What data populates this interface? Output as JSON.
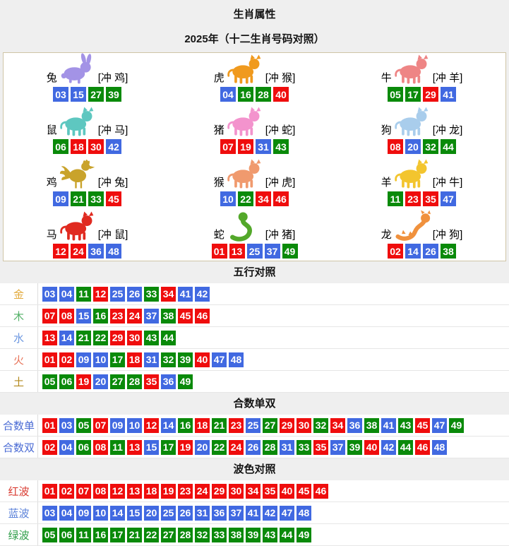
{
  "page": {
    "title": "生肖属性",
    "subtitle": "2025年（十二生肖号码对照）"
  },
  "palette": {
    "ball_red": "#ef0d0d",
    "ball_blue": "#4169e1",
    "ball_green": "#0a8a0a"
  },
  "ball_color_groups": {
    "red": [
      1,
      2,
      7,
      8,
      12,
      13,
      18,
      19,
      23,
      24,
      29,
      30,
      34,
      35,
      40,
      45,
      46
    ],
    "blue": [
      3,
      4,
      9,
      10,
      14,
      15,
      20,
      25,
      26,
      31,
      36,
      37,
      41,
      42,
      47,
      48
    ],
    "green": [
      5,
      6,
      11,
      16,
      17,
      21,
      22,
      27,
      28,
      32,
      33,
      38,
      39,
      43,
      44,
      49
    ]
  },
  "zodiac_cells": [
    {
      "name": "兔",
      "clash": "[冲 鸡]",
      "icon": "rabbit-icon",
      "icon_color": "#a393e6",
      "numbers": [
        "03",
        "15",
        "27",
        "39"
      ]
    },
    {
      "name": "虎",
      "clash": "[冲 猴]",
      "icon": "tiger-icon",
      "icon_color": "#f09a1e",
      "numbers": [
        "04",
        "16",
        "28",
        "40"
      ]
    },
    {
      "name": "牛",
      "clash": "[冲 羊]",
      "icon": "ox-icon",
      "icon_color": "#ee8585",
      "numbers": [
        "05",
        "17",
        "29",
        "41"
      ]
    },
    {
      "name": "鼠",
      "clash": "[冲 马]",
      "icon": "rat-icon",
      "icon_color": "#5ec7c0",
      "numbers": [
        "06",
        "18",
        "30",
        "42"
      ]
    },
    {
      "name": "猪",
      "clash": "[冲 蛇]",
      "icon": "pig-icon",
      "icon_color": "#f393cd",
      "numbers": [
        "07",
        "19",
        "31",
        "43"
      ]
    },
    {
      "name": "狗",
      "clash": "[冲 龙]",
      "icon": "dog-icon",
      "icon_color": "#a9cdec",
      "numbers": [
        "08",
        "20",
        "32",
        "44"
      ]
    },
    {
      "name": "鸡",
      "clash": "[冲 兔]",
      "icon": "rooster-icon",
      "icon_color": "#c9a32b",
      "numbers": [
        "09",
        "21",
        "33",
        "45"
      ]
    },
    {
      "name": "猴",
      "clash": "[冲 虎]",
      "icon": "monkey-icon",
      "icon_color": "#f09a6e",
      "numbers": [
        "10",
        "22",
        "34",
        "46"
      ]
    },
    {
      "name": "羊",
      "clash": "[冲 牛]",
      "icon": "goat-icon",
      "icon_color": "#f3c52e",
      "numbers": [
        "11",
        "23",
        "35",
        "47"
      ]
    },
    {
      "name": "马",
      "clash": "[冲 鼠]",
      "icon": "horse-icon",
      "icon_color": "#e02a20",
      "numbers": [
        "12",
        "24",
        "36",
        "48"
      ]
    },
    {
      "name": "蛇",
      "clash": "[冲 猪]",
      "icon": "snake-icon",
      "icon_color": "#53a82a",
      "numbers": [
        "01",
        "13",
        "25",
        "37",
        "49"
      ]
    },
    {
      "name": "龙",
      "clash": "[冲 狗]",
      "icon": "dragon-icon",
      "icon_color": "#f0913d",
      "numbers": [
        "02",
        "14",
        "26",
        "38"
      ]
    }
  ],
  "sections": [
    {
      "header": "五行对照",
      "rows": [
        {
          "label": "金",
          "label_color": "#e2aa3c",
          "numbers": [
            "03",
            "04",
            "11",
            "12",
            "25",
            "26",
            "33",
            "34",
            "41",
            "42"
          ]
        },
        {
          "label": "木",
          "label_color": "#55b269",
          "numbers": [
            "07",
            "08",
            "15",
            "16",
            "23",
            "24",
            "37",
            "38",
            "45",
            "46"
          ]
        },
        {
          "label": "水",
          "label_color": "#6b96e0",
          "numbers": [
            "13",
            "14",
            "21",
            "22",
            "29",
            "30",
            "43",
            "44"
          ]
        },
        {
          "label": "火",
          "label_color": "#e8745a",
          "numbers": [
            "01",
            "02",
            "09",
            "10",
            "17",
            "18",
            "31",
            "32",
            "39",
            "40",
            "47",
            "48"
          ]
        },
        {
          "label": "土",
          "label_color": "#b3891d",
          "numbers": [
            "05",
            "06",
            "19",
            "20",
            "27",
            "28",
            "35",
            "36",
            "49"
          ]
        }
      ]
    },
    {
      "header": "合数单双",
      "rows": [
        {
          "label": "合数单",
          "label_color": "#4a6bd4",
          "numbers": [
            "01",
            "03",
            "05",
            "07",
            "09",
            "10",
            "12",
            "14",
            "16",
            "18",
            "21",
            "23",
            "25",
            "27",
            "29",
            "30",
            "32",
            "34",
            "36",
            "38",
            "41",
            "43",
            "45",
            "47",
            "49"
          ]
        },
        {
          "label": "合数双",
          "label_color": "#4a6bd4",
          "numbers": [
            "02",
            "04",
            "06",
            "08",
            "11",
            "13",
            "15",
            "17",
            "19",
            "20",
            "22",
            "24",
            "26",
            "28",
            "31",
            "33",
            "35",
            "37",
            "39",
            "40",
            "42",
            "44",
            "46",
            "48"
          ]
        }
      ]
    },
    {
      "header": "波色对照",
      "rows": [
        {
          "label": "红波",
          "label_color": "#d93b31",
          "numbers": [
            "01",
            "02",
            "07",
            "08",
            "12",
            "13",
            "18",
            "19",
            "23",
            "24",
            "29",
            "30",
            "34",
            "35",
            "40",
            "45",
            "46"
          ]
        },
        {
          "label": "蓝波",
          "label_color": "#5b82d9",
          "numbers": [
            "03",
            "04",
            "09",
            "10",
            "14",
            "15",
            "20",
            "25",
            "26",
            "31",
            "36",
            "37",
            "41",
            "42",
            "47",
            "48"
          ]
        },
        {
          "label": "绿波",
          "label_color": "#2f9e4a",
          "numbers": [
            "05",
            "06",
            "11",
            "16",
            "17",
            "21",
            "22",
            "27",
            "28",
            "32",
            "33",
            "38",
            "39",
            "43",
            "44",
            "49"
          ]
        }
      ]
    }
  ]
}
